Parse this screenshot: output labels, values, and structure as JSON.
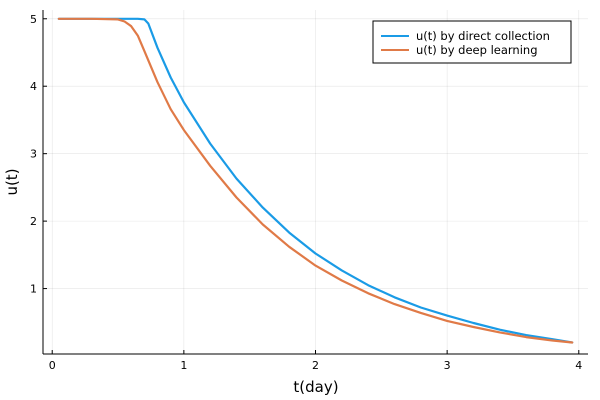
{
  "chart_data": {
    "type": "line",
    "xlabel": "t(day)",
    "ylabel": "u(t)",
    "xlim": [
      -0.07,
      4.07
    ],
    "ylim": [
      0.03,
      5.13
    ],
    "xticks": [
      0,
      1,
      2,
      3,
      4
    ],
    "yticks": [
      1,
      2,
      3,
      4,
      5
    ],
    "grid": true,
    "legend_position": "top-right",
    "series": [
      {
        "name": "u(t) by direct collection",
        "color": "#1a9be6",
        "x": [
          0.05,
          0.3,
          0.5,
          0.65,
          0.7,
          0.73,
          0.8,
          0.9,
          1.0,
          1.2,
          1.4,
          1.6,
          1.8,
          2.0,
          2.2,
          2.4,
          2.6,
          2.8,
          3.0,
          3.2,
          3.4,
          3.6,
          3.8,
          3.95
        ],
        "y": [
          5.0,
          5.0,
          5.0,
          5.0,
          4.99,
          4.93,
          4.57,
          4.13,
          3.76,
          3.15,
          2.63,
          2.2,
          1.83,
          1.52,
          1.27,
          1.05,
          0.87,
          0.72,
          0.6,
          0.49,
          0.39,
          0.31,
          0.25,
          0.2
        ]
      },
      {
        "name": "u(t) by deep learning",
        "color": "#e07a47",
        "x": [
          0.05,
          0.3,
          0.5,
          0.55,
          0.6,
          0.65,
          0.7,
          0.8,
          0.9,
          1.0,
          1.2,
          1.4,
          1.6,
          1.8,
          2.0,
          2.2,
          2.4,
          2.6,
          2.8,
          3.0,
          3.2,
          3.4,
          3.6,
          3.8,
          3.95
        ],
        "y": [
          5.0,
          5.0,
          4.99,
          4.96,
          4.89,
          4.75,
          4.52,
          4.06,
          3.66,
          3.35,
          2.82,
          2.35,
          1.95,
          1.62,
          1.34,
          1.12,
          0.93,
          0.77,
          0.64,
          0.52,
          0.43,
          0.35,
          0.28,
          0.23,
          0.2
        ]
      }
    ]
  }
}
